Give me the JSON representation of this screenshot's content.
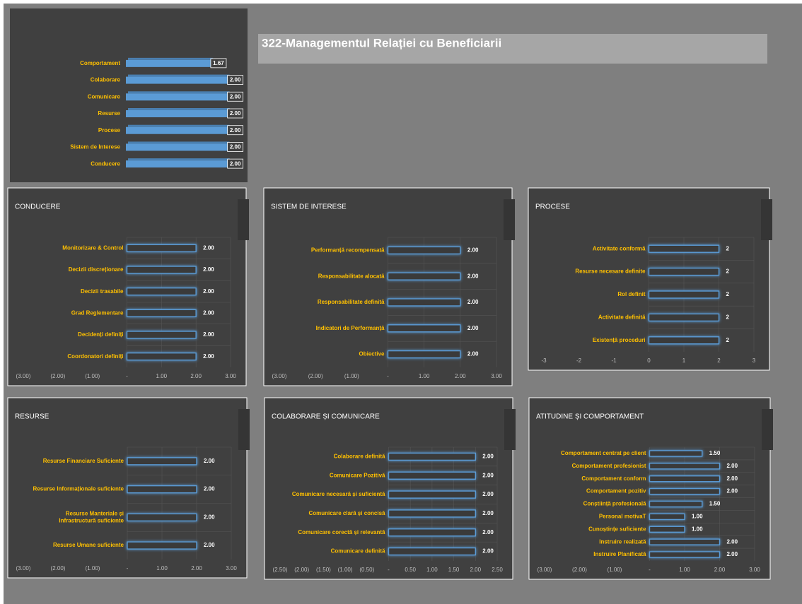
{
  "title": "322-Managementul Relației cu Beneficiarii",
  "chart_data": [
    {
      "type": "hbar3d",
      "color": "#5b9bd5",
      "xlim": [
        0,
        2.2
      ],
      "categories": [
        "Comportament",
        "Colaborare",
        "Comunicare",
        "Resurse",
        "Procese",
        "Sistem de Interese",
        "Conducere"
      ],
      "values": [
        1.67,
        2,
        2,
        2,
        2,
        2,
        2
      ],
      "value_labels": [
        "1.67",
        "2.00",
        "2.00",
        "2.00",
        "2.00",
        "2.00",
        "2.00"
      ]
    },
    {
      "type": "hbar",
      "title": "CONDUCERE",
      "color": "#5b9bd5",
      "grid": true,
      "xlim": [
        -3,
        3
      ],
      "xticks": [
        {
          "value": -3,
          "label": "(3.00)"
        },
        {
          "value": -2,
          "label": "(2.00)"
        },
        {
          "value": -1,
          "label": "(1.00)"
        },
        {
          "value": 0,
          "label": "-"
        },
        {
          "value": 1,
          "label": "1.00"
        },
        {
          "value": 2,
          "label": "2.00"
        },
        {
          "value": 3,
          "label": "3.00"
        }
      ],
      "categories": [
        "Monitorizare & Control",
        "Decizii discreționare",
        "Decizii trasabile",
        "Grad Reglementare",
        "Decidenți definiți",
        "Coordonatori  definiți"
      ],
      "values": [
        2,
        2,
        2,
        2,
        2,
        2
      ],
      "value_labels": [
        "2.00",
        "2.00",
        "2.00",
        "2.00",
        "2.00",
        "2.00"
      ]
    },
    {
      "type": "hbar",
      "title": "SISTEM DE INTERESE",
      "color": "#5b9bd5",
      "grid": true,
      "xlim": [
        -3,
        3
      ],
      "xticks": [
        {
          "value": -3,
          "label": "(3.00)"
        },
        {
          "value": -2,
          "label": "(2.00)"
        },
        {
          "value": -1,
          "label": "(1.00)"
        },
        {
          "value": 0,
          "label": "-"
        },
        {
          "value": 1,
          "label": "1.00"
        },
        {
          "value": 2,
          "label": "2.00"
        },
        {
          "value": 3,
          "label": "3.00"
        }
      ],
      "categories": [
        "Performanță recompensată",
        "Responsabilitate alocată",
        "Responsabilitate definită",
        "Indicatori  de Performanță",
        "Obiective"
      ],
      "values": [
        2,
        2,
        2,
        2,
        2
      ],
      "value_labels": [
        "2.00",
        "2.00",
        "2.00",
        "2.00",
        "2.00"
      ]
    },
    {
      "type": "hbar",
      "title": "PROCESE",
      "color": "#5b9bd5",
      "grid": true,
      "xlim": [
        -3,
        3
      ],
      "xticks": [
        -3,
        -2,
        -1,
        0,
        1,
        2,
        3
      ],
      "categories": [
        "Activitate conformă",
        "Resurse necesare definite",
        "Rol definit",
        "Activitate definită",
        "Existență proceduri"
      ],
      "values": [
        2,
        2,
        2,
        2,
        2
      ]
    },
    {
      "type": "hbar",
      "title": "RESURSE",
      "color": "#5b9bd5",
      "grid": true,
      "xlim": [
        -3,
        3
      ],
      "xticks": [
        {
          "value": -3,
          "label": "(3.00)"
        },
        {
          "value": -2,
          "label": "(2.00)"
        },
        {
          "value": -1,
          "label": "(1.00)"
        },
        {
          "value": 0,
          "label": "-"
        },
        {
          "value": 1,
          "label": "1.00"
        },
        {
          "value": 2,
          "label": "2.00"
        },
        {
          "value": 3,
          "label": "3.00"
        }
      ],
      "categories": [
        "Resurse Financiare Suficiente",
        "Resurse Informaționale suficiente",
        "Resurse Manteriale și Infrastructură suficiente",
        "Resurse Umane suficiente"
      ],
      "values": [
        2,
        2,
        2,
        2
      ],
      "value_labels": [
        "2.00",
        "2.00",
        "2.00",
        "2.00"
      ]
    },
    {
      "type": "hbar",
      "title": "COLABORARE ȘI COMUNICARE",
      "color": "#5b9bd5",
      "grid": true,
      "xlim": [
        -2.5,
        2.5
      ],
      "xticks": [
        {
          "value": -2.5,
          "label": "(2.50)"
        },
        {
          "value": -2,
          "label": "(2.00)"
        },
        {
          "value": -1.5,
          "label": "(1.50)"
        },
        {
          "value": -1,
          "label": "(1.00)"
        },
        {
          "value": -0.5,
          "label": "(0.50)"
        },
        {
          "value": 0,
          "label": "-"
        },
        {
          "value": 0.5,
          "label": "0.50"
        },
        {
          "value": 1,
          "label": "1.00"
        },
        {
          "value": 1.5,
          "label": "1.50"
        },
        {
          "value": 2,
          "label": "2.00"
        },
        {
          "value": 2.5,
          "label": "2.50"
        }
      ],
      "categories": [
        "Colaborare definită",
        "Comunicare Pozitivă",
        "Comunicare necesară și suficientă",
        "Comunicare clară și concisă",
        "Comunicare corectă și relevantă",
        "Comunicare definită"
      ],
      "values": [
        2,
        2,
        2,
        2,
        2,
        2
      ],
      "value_labels": [
        "2.00",
        "2.00",
        "2.00",
        "2.00",
        "2.00",
        "2.00"
      ]
    },
    {
      "type": "hbar",
      "title": "ATITUDINE ȘI COMPORTAMENT",
      "color": "#5b9bd5",
      "grid": true,
      "xlim": [
        -3,
        3
      ],
      "xticks": [
        {
          "value": -3,
          "label": "(3.00)"
        },
        {
          "value": -2,
          "label": "(2.00)"
        },
        {
          "value": -1,
          "label": "(1.00)"
        },
        {
          "value": 0,
          "label": "-"
        },
        {
          "value": 1,
          "label": "1.00"
        },
        {
          "value": 2,
          "label": "2.00"
        },
        {
          "value": 3,
          "label": "3.00"
        }
      ],
      "categories": [
        "Comportament centrat pe client",
        "Comportament profesionist",
        "Comportament conform",
        "Comportament pozitiv",
        "Conștiință profesională",
        "Personal motivaT",
        "Cunoștințe  suficiente",
        "Instruire realizată",
        "Instruire Planificată"
      ],
      "values": [
        1.5,
        2,
        2,
        2,
        1.5,
        1,
        1,
        2,
        2
      ],
      "value_labels": [
        "1.50",
        "2.00",
        "2.00",
        "2.00",
        "1.50",
        "1.00",
        "1.00",
        "2.00",
        "2.00"
      ]
    }
  ]
}
